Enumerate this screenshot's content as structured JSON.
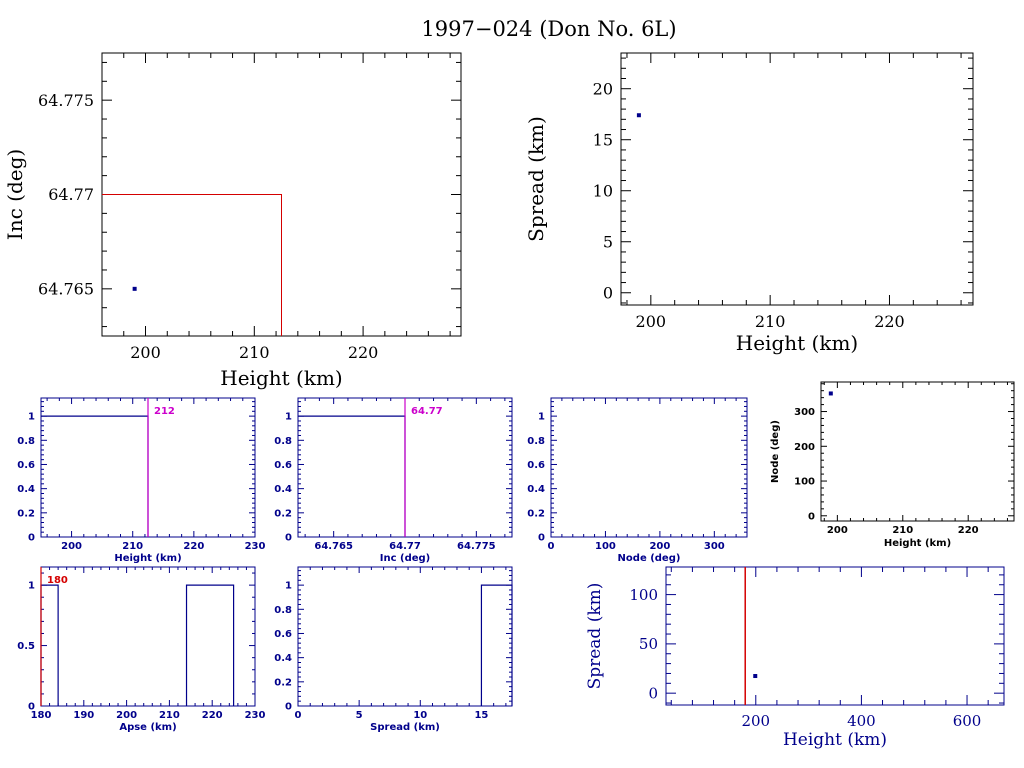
{
  "title": "1997−024 (Don No. 6L)",
  "colors": {
    "black": "#000000",
    "blue": "#00008b",
    "red": "#d40000",
    "magenta": "#cc00cc"
  },
  "chart_data": [
    {
      "id": "inc-vs-height",
      "type": "scatter",
      "xlabel": "Height (km)",
      "ylabel": "Inc (deg)",
      "xlim": [
        196,
        229
      ],
      "ylim": [
        64.7625,
        64.7775
      ],
      "xticks": [
        200,
        210,
        220
      ],
      "yticks": [
        64.765,
        64.77,
        64.775
      ],
      "yticklabels": [
        "64.765",
        "64.77",
        "64.775"
      ],
      "points": [
        [
          199,
          64.765
        ]
      ],
      "reference_lines": {
        "x": 212.5,
        "y": 64.77
      }
    },
    {
      "id": "spread-vs-height",
      "type": "scatter",
      "xlabel": "Height (km)",
      "ylabel": "Spread (km)",
      "xlim": [
        197.5,
        227
      ],
      "ylim": [
        -1.2,
        23.5
      ],
      "xticks": [
        200,
        210,
        220
      ],
      "yticks": [
        0,
        5,
        10,
        15,
        20
      ],
      "points": [
        [
          199,
          17.4
        ]
      ]
    },
    {
      "id": "height-hist",
      "type": "area",
      "xlabel": "Height (km)",
      "xlim": [
        195,
        230
      ],
      "ylim": [
        0,
        1.15
      ],
      "xticks": [
        200,
        210,
        220,
        230
      ],
      "yticks": [
        0,
        0.2,
        0.4,
        0.6,
        0.8,
        1
      ],
      "yticklabels": [
        "0",
        "0.2",
        "0.4",
        "0.6",
        "0.8",
        "1"
      ],
      "x": [
        195,
        212.5
      ],
      "y": [
        1,
        1
      ],
      "marker": {
        "value": 212.5,
        "label": "212"
      }
    },
    {
      "id": "inc-hist",
      "type": "area",
      "xlabel": "Inc (deg)",
      "xlim": [
        64.7625,
        64.7775
      ],
      "ylim": [
        0,
        1.15
      ],
      "xticks": [
        64.765,
        64.77,
        64.775
      ],
      "xticklabels": [
        "64.765",
        "64.77",
        "64.775"
      ],
      "yticks": [
        0,
        0.2,
        0.4,
        0.6,
        0.8,
        1
      ],
      "yticklabels": [
        "0",
        "0.2",
        "0.4",
        "0.6",
        "0.8",
        "1"
      ],
      "x": [
        64.7625,
        64.77
      ],
      "y": [
        1,
        1
      ],
      "marker": {
        "value": 64.77,
        "label": "64.77"
      }
    },
    {
      "id": "node-hist",
      "type": "area",
      "xlabel": "Node (deg)",
      "xlim": [
        0,
        360
      ],
      "ylim": [
        0,
        1.15
      ],
      "xticks": [
        0,
        100,
        200,
        300
      ],
      "yticks": [
        0,
        0.2,
        0.4,
        0.6,
        0.8,
        1
      ],
      "yticklabels": [
        "0",
        "0.2",
        "0.4",
        "0.6",
        "0.8",
        "1"
      ],
      "x": [],
      "y": []
    },
    {
      "id": "node-vs-height",
      "type": "scatter",
      "xlabel": "Height (km)",
      "ylabel": "Node (deg)",
      "xlim": [
        197.5,
        227
      ],
      "ylim": [
        -15,
        385
      ],
      "xticks": [
        200,
        210,
        220
      ],
      "yticks": [
        0,
        100,
        200,
        300
      ],
      "points": [
        [
          199,
          352
        ]
      ]
    },
    {
      "id": "apse-hist",
      "type": "area",
      "xlabel": "Apse (km)",
      "xlim": [
        180,
        230
      ],
      "ylim": [
        0,
        1.15
      ],
      "xticks": [
        180,
        190,
        200,
        210,
        220,
        230
      ],
      "xticklabels": [
        "180",
        "190",
        "200",
        "210",
        "220",
        "230"
      ],
      "yticks": [
        0,
        0.5,
        1
      ],
      "yticklabels": [
        "0",
        "0.5",
        "1"
      ],
      "bars": [
        [
          180,
          184,
          1
        ],
        [
          214,
          225,
          1
        ]
      ],
      "marker": {
        "value": 180,
        "label": "180"
      }
    },
    {
      "id": "spread-hist",
      "type": "area",
      "xlabel": "Spread (km)",
      "xlim": [
        0,
        17.5
      ],
      "ylim": [
        0,
        1.15
      ],
      "xticks": [
        0,
        5,
        10,
        15
      ],
      "yticks": [
        0,
        0.2,
        0.4,
        0.6,
        0.8,
        1
      ],
      "yticklabels": [
        "0",
        "0.2",
        "0.4",
        "0.6",
        "0.8",
        "1"
      ],
      "bars": [
        [
          15,
          17.5,
          1
        ]
      ]
    },
    {
      "id": "spread-vs-height-wide",
      "type": "scatter",
      "xlabel": "Height (km)",
      "ylabel": "Spread (km)",
      "xlim": [
        30,
        670
      ],
      "ylim": [
        -12,
        128
      ],
      "xticks": [
        200,
        400,
        600
      ],
      "yticks": [
        0,
        50,
        100
      ],
      "points": [
        [
          199,
          17.4
        ]
      ],
      "reference_lines": {
        "x": 180
      }
    }
  ]
}
